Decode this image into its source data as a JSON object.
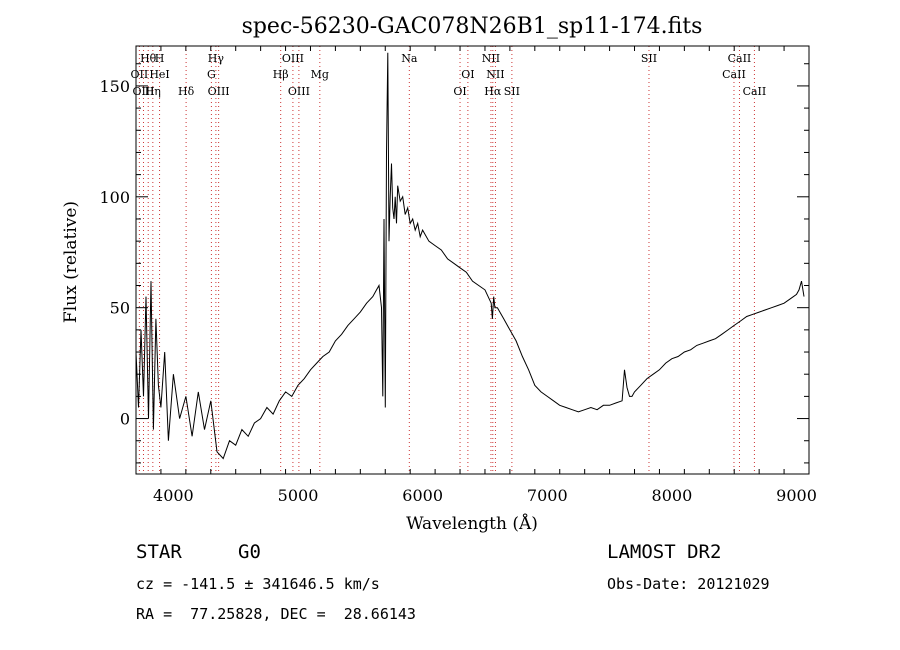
{
  "chart_data": {
    "type": "line",
    "title": "spec-56230-GAC078N26B1_sp11-174.fits",
    "xlabel": "Wavelength (Å)",
    "ylabel": "Flux (relative)",
    "xlim": [
      3700,
      9100
    ],
    "ylim": [
      -25,
      168
    ],
    "xticks": [
      4000,
      5000,
      6000,
      7000,
      8000,
      9000
    ],
    "yticks": [
      0,
      50,
      100,
      150
    ],
    "grid": false,
    "series": [
      {
        "x": [
          3700,
          3720,
          3740,
          3760,
          3780,
          3800,
          3820,
          3840,
          3860,
          3880,
          3900,
          3930,
          3960,
          4000,
          4050,
          4100,
          4150,
          4200,
          4250,
          4300,
          4350,
          4400,
          4450,
          4500,
          4550,
          4600,
          4650,
          4700,
          4750,
          4800,
          4850,
          4900,
          4950,
          5000,
          5050,
          5100,
          5150,
          5200,
          5250,
          5300,
          5350,
          5400,
          5450,
          5500,
          5550,
          5600,
          5630,
          5650,
          5670,
          5680,
          5690,
          5700,
          5710,
          5720,
          5730,
          5740,
          5750,
          5760,
          5770,
          5780,
          5790,
          5800,
          5820,
          5840,
          5860,
          5880,
          5900,
          5920,
          5940,
          5960,
          5980,
          6000,
          6050,
          6100,
          6150,
          6200,
          6250,
          6300,
          6350,
          6400,
          6450,
          6500,
          6550,
          6560,
          6570,
          6580,
          6600,
          6650,
          6700,
          6750,
          6800,
          6850,
          6900,
          6950,
          7000,
          7050,
          7100,
          7150,
          7200,
          7250,
          7300,
          7350,
          7400,
          7450,
          7500,
          7550,
          7600,
          7620,
          7640,
          7660,
          7680,
          7700,
          7750,
          7800,
          7850,
          7900,
          7950,
          8000,
          8050,
          8100,
          8150,
          8200,
          8250,
          8300,
          8350,
          8400,
          8450,
          8500,
          8550,
          8600,
          8650,
          8700,
          8750,
          8800,
          8850,
          8900,
          8950,
          9000,
          9020,
          9040,
          9060
        ],
        "y": [
          30,
          5,
          40,
          10,
          55,
          0,
          62,
          -5,
          45,
          15,
          5,
          30,
          -10,
          20,
          0,
          10,
          -8,
          12,
          -5,
          8,
          -15,
          -18,
          -10,
          -12,
          -5,
          -8,
          -2,
          0,
          5,
          2,
          8,
          12,
          10,
          15,
          18,
          22,
          25,
          28,
          30,
          35,
          38,
          42,
          45,
          48,
          52,
          55,
          58,
          60,
          50,
          10,
          90,
          5,
          120,
          165,
          80,
          100,
          115,
          95,
          90,
          100,
          88,
          105,
          98,
          100,
          92,
          95,
          88,
          90,
          85,
          88,
          82,
          85,
          80,
          78,
          76,
          72,
          70,
          68,
          66,
          62,
          60,
          58,
          52,
          45,
          55,
          50,
          50,
          45,
          40,
          35,
          28,
          22,
          15,
          12,
          10,
          8,
          6,
          5,
          4,
          3,
          4,
          5,
          4,
          6,
          6,
          7,
          8,
          22,
          14,
          10,
          10,
          12,
          15,
          18,
          20,
          22,
          25,
          27,
          28,
          30,
          31,
          33,
          34,
          35,
          36,
          38,
          40,
          42,
          44,
          46,
          47,
          48,
          49,
          50,
          51,
          52,
          54,
          56,
          58,
          62,
          55
        ]
      }
    ],
    "line_annotations": [
      {
        "label": "Hθ",
        "wave": 3798,
        "row": 1
      },
      {
        "label": "H",
        "wave": 3889,
        "row": 1
      },
      {
        "label": "Hγ",
        "wave": 4341,
        "row": 1
      },
      {
        "label": "OIII",
        "wave": 4959,
        "row": 1
      },
      {
        "label": "Na",
        "wave": 5893,
        "row": 1
      },
      {
        "label": "NII",
        "wave": 6548,
        "row": 1
      },
      {
        "label": "SII",
        "wave": 7816,
        "row": 1
      },
      {
        "label": "CaII",
        "wave": 8542,
        "row": 1
      },
      {
        "label": "OII",
        "wave": 3727,
        "row": 2
      },
      {
        "label": "HeI",
        "wave": 3889,
        "row": 2
      },
      {
        "label": "G",
        "wave": 4305,
        "row": 2
      },
      {
        "label": "Hβ",
        "wave": 4861,
        "row": 2
      },
      {
        "label": "Mg",
        "wave": 5175,
        "row": 2
      },
      {
        "label": "OI",
        "wave": 6363,
        "row": 2
      },
      {
        "label": "NII",
        "wave": 6584,
        "row": 2
      },
      {
        "label": "CaII",
        "wave": 8498,
        "row": 2
      },
      {
        "label": "OIII",
        "wave": 3760,
        "row": 3
      },
      {
        "label": "Hη",
        "wave": 3835,
        "row": 3
      },
      {
        "label": "Hδ",
        "wave": 4102,
        "row": 3
      },
      {
        "label": "OIII",
        "wave": 4363,
        "row": 3
      },
      {
        "label": "OIII",
        "wave": 5007,
        "row": 3
      },
      {
        "label": "OI",
        "wave": 6300,
        "row": 3
      },
      {
        "label": "Hα",
        "wave": 6563,
        "row": 3
      },
      {
        "label": "SII",
        "wave": 6716,
        "row": 3
      },
      {
        "label": "CaII",
        "wave": 8662,
        "row": 3
      }
    ]
  },
  "info": {
    "class_label": "STAR",
    "subclass": "G0",
    "survey": "LAMOST DR2",
    "cz": "cz = -141.5 ± 341646.5 km/s",
    "obs_date": "Obs-Date: 20121029",
    "coords": "RA =  77.25828, DEC =  28.66143"
  },
  "colors": {
    "axis": "#000000",
    "spectrum": "#000000",
    "line_marker": "#cc3333"
  }
}
